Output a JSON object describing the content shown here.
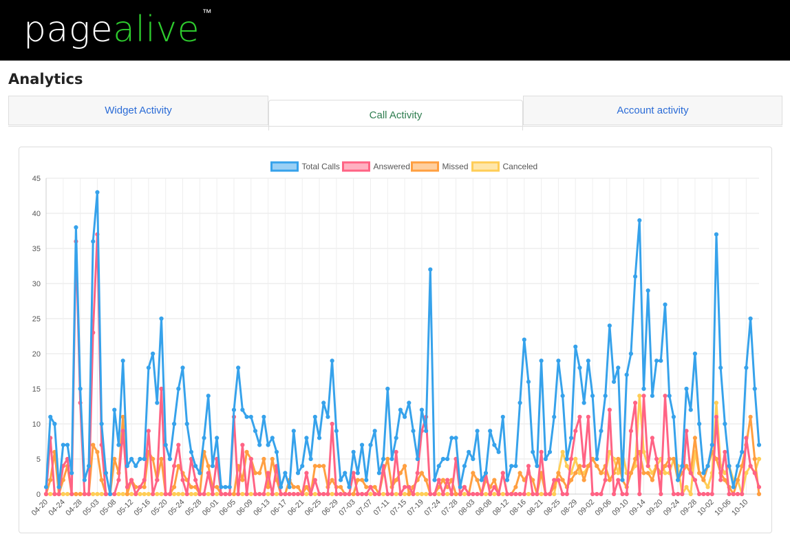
{
  "header": {
    "logo_part1": "page",
    "logo_part2": "alive",
    "trademark": "™"
  },
  "page": {
    "title": "Analytics"
  },
  "tabs": [
    {
      "label": "Widget Activity",
      "active": false
    },
    {
      "label": "Call Activity",
      "active": true
    },
    {
      "label": "Account activity",
      "active": false
    }
  ],
  "chart_data": {
    "type": "line",
    "title": "",
    "xlabel": "",
    "ylabel": "",
    "ylim": [
      0,
      45
    ],
    "yticks": [
      0,
      5,
      10,
      15,
      20,
      25,
      30,
      35,
      40,
      45
    ],
    "grid": true,
    "legend_position": "top",
    "x_tick_labels": [
      "04-20",
      "04-24",
      "04-28",
      "05-03",
      "05-08",
      "05-12",
      "05-16",
      "05-20",
      "05-24",
      "05-28",
      "06-01",
      "06-05",
      "06-09",
      "06-13",
      "06-17",
      "06-21",
      "06-25",
      "06-29",
      "07-03",
      "07-07",
      "07-11",
      "07-15",
      "07-19",
      "07-24",
      "07-28",
      "08-03",
      "08-08",
      "08-12",
      "08-16",
      "08-21",
      "08-25",
      "08-29",
      "09-02",
      "09-06",
      "09-10",
      "09-14",
      "09-20",
      "09-24",
      "09-28",
      "10-02",
      "10-06",
      "10-10"
    ],
    "series": [
      {
        "name": "Total Calls",
        "color": "#36a2eb",
        "values": [
          1,
          11,
          10,
          1,
          7,
          7,
          3,
          38,
          15,
          2,
          4,
          36,
          43,
          10,
          3,
          0,
          12,
          7,
          19,
          4,
          5,
          4,
          5,
          5,
          18,
          20,
          13,
          25,
          7,
          5,
          10,
          15,
          18,
          10,
          6,
          4,
          3,
          8,
          14,
          4,
          8,
          1,
          1,
          1,
          12,
          18,
          12,
          11,
          11,
          9,
          7,
          11,
          7,
          8,
          6,
          1,
          3,
          1,
          9,
          3,
          4,
          8,
          5,
          11,
          8,
          13,
          11,
          19,
          9,
          2,
          3,
          1,
          6,
          3,
          7,
          2,
          7,
          9,
          3,
          5,
          15,
          5,
          8,
          12,
          11,
          13,
          9,
          5,
          12,
          9,
          32,
          2,
          4,
          5,
          5,
          8,
          8,
          1,
          4,
          6,
          5,
          9,
          2,
          3,
          9,
          7,
          6,
          11,
          2,
          4,
          4,
          13,
          22,
          16,
          6,
          4,
          19,
          5,
          6,
          11,
          19,
          14,
          5,
          8,
          21,
          18,
          13,
          19,
          14,
          5,
          9,
          14,
          24,
          16,
          18,
          2,
          17,
          20,
          31,
          39,
          15,
          29,
          14,
          19,
          19,
          27,
          14,
          11,
          2,
          4,
          15,
          12,
          20,
          10,
          3,
          4,
          7,
          37,
          18,
          10,
          4,
          1,
          4,
          6,
          18,
          25,
          15,
          7
        ]
      },
      {
        "name": "Answered",
        "color": "#ff6384",
        "values": [
          0,
          8,
          0,
          0,
          4,
          5,
          0,
          36,
          13,
          0,
          0,
          23,
          37,
          7,
          0,
          0,
          0,
          2,
          9,
          1,
          2,
          0,
          1,
          2,
          9,
          0,
          2,
          15,
          0,
          0,
          4,
          7,
          2,
          0,
          5,
          2,
          0,
          0,
          3,
          0,
          5,
          0,
          0,
          0,
          11,
          0,
          7,
          0,
          5,
          0,
          0,
          0,
          3,
          0,
          4,
          0,
          0,
          0,
          0,
          0,
          0,
          3,
          0,
          2,
          0,
          0,
          0,
          10,
          0,
          0,
          0,
          0,
          3,
          0,
          0,
          0,
          1,
          0,
          0,
          4,
          0,
          0,
          6,
          0,
          1,
          1,
          0,
          3,
          9,
          11,
          0,
          0,
          2,
          0,
          2,
          0,
          5,
          0,
          1,
          0,
          0,
          0,
          0,
          3,
          0,
          1,
          0,
          3,
          0,
          0,
          0,
          0,
          0,
          4,
          0,
          0,
          6,
          0,
          0,
          2,
          2,
          0,
          0,
          5,
          9,
          11,
          4,
          11,
          0,
          0,
          0,
          2,
          12,
          0,
          2,
          0,
          0,
          9,
          13,
          0,
          14,
          4,
          8,
          5,
          0,
          14,
          4,
          0,
          0,
          0,
          9,
          3,
          2,
          0,
          0,
          0,
          0,
          11,
          2,
          6,
          0,
          0,
          0,
          0,
          8,
          4,
          3,
          1
        ]
      },
      {
        "name": "Missed",
        "color": "#ff9f40",
        "values": [
          0,
          2,
          6,
          0,
          2,
          4,
          0,
          0,
          0,
          0,
          0,
          7,
          6,
          2,
          0,
          0,
          5,
          3,
          11,
          0,
          2,
          1,
          1,
          1,
          6,
          5,
          2,
          5,
          0,
          0,
          1,
          4,
          3,
          2,
          1,
          1,
          0,
          6,
          4,
          1,
          1,
          0,
          0,
          0,
          0,
          4,
          2,
          6,
          5,
          3,
          3,
          5,
          1,
          5,
          2,
          0,
          0,
          2,
          1,
          1,
          0,
          1,
          0,
          4,
          4,
          4,
          1,
          2,
          1,
          1,
          0,
          0,
          0,
          2,
          2,
          1,
          1,
          1,
          0,
          3,
          5,
          1,
          2,
          3,
          4,
          0,
          1,
          2,
          3,
          2,
          0,
          0,
          1,
          2,
          1,
          2,
          0,
          0,
          1,
          0,
          3,
          2,
          0,
          2,
          1,
          2,
          0,
          3,
          0,
          0,
          1,
          3,
          2,
          3,
          2,
          0,
          3,
          0,
          0,
          1,
          3,
          2,
          1,
          2,
          3,
          4,
          2,
          4,
          5,
          4,
          3,
          4,
          2,
          3,
          5,
          2,
          1,
          3,
          5,
          6,
          3,
          3,
          2,
          4,
          3,
          4,
          5,
          5,
          2,
          3,
          4,
          3,
          8,
          3,
          2,
          4,
          6,
          5,
          3,
          2,
          1,
          0,
          2,
          4,
          7,
          11,
          5,
          0
        ]
      },
      {
        "name": "Canceled",
        "color": "#ffcd56",
        "values": [
          0,
          0,
          0,
          0,
          0,
          0,
          0,
          0,
          0,
          0,
          0,
          0,
          0,
          0,
          0,
          0,
          0,
          0,
          0,
          0,
          0,
          0,
          0,
          0,
          0,
          0,
          0,
          0,
          0,
          0,
          0,
          0,
          0,
          0,
          0,
          0,
          0,
          0,
          0,
          0,
          0,
          0,
          0,
          0,
          0,
          0,
          0,
          0,
          0,
          0,
          0,
          0,
          0,
          0,
          0,
          0,
          0,
          0,
          0,
          0,
          0,
          0,
          0,
          0,
          0,
          0,
          0,
          0,
          0,
          0,
          0,
          0,
          0,
          0,
          0,
          0,
          0,
          0,
          0,
          0,
          0,
          0,
          0,
          0,
          0,
          0,
          0,
          0,
          0,
          0,
          0,
          0,
          0,
          0,
          0,
          0,
          0,
          0,
          0,
          0,
          0,
          0,
          0,
          0,
          0,
          0,
          0,
          0,
          0,
          0,
          0,
          0,
          0,
          0,
          0,
          0,
          0,
          0,
          0,
          0,
          3,
          6,
          4,
          3,
          5,
          3,
          3,
          4,
          5,
          4,
          3,
          3,
          6,
          5,
          3,
          6,
          3,
          3,
          4,
          14,
          6,
          4,
          3,
          4,
          5,
          3,
          3,
          5,
          4,
          0,
          1,
          0,
          6,
          3,
          2,
          1,
          3,
          13,
          4,
          3,
          4,
          2,
          2,
          0,
          3,
          4,
          3,
          5
        ]
      }
    ]
  }
}
